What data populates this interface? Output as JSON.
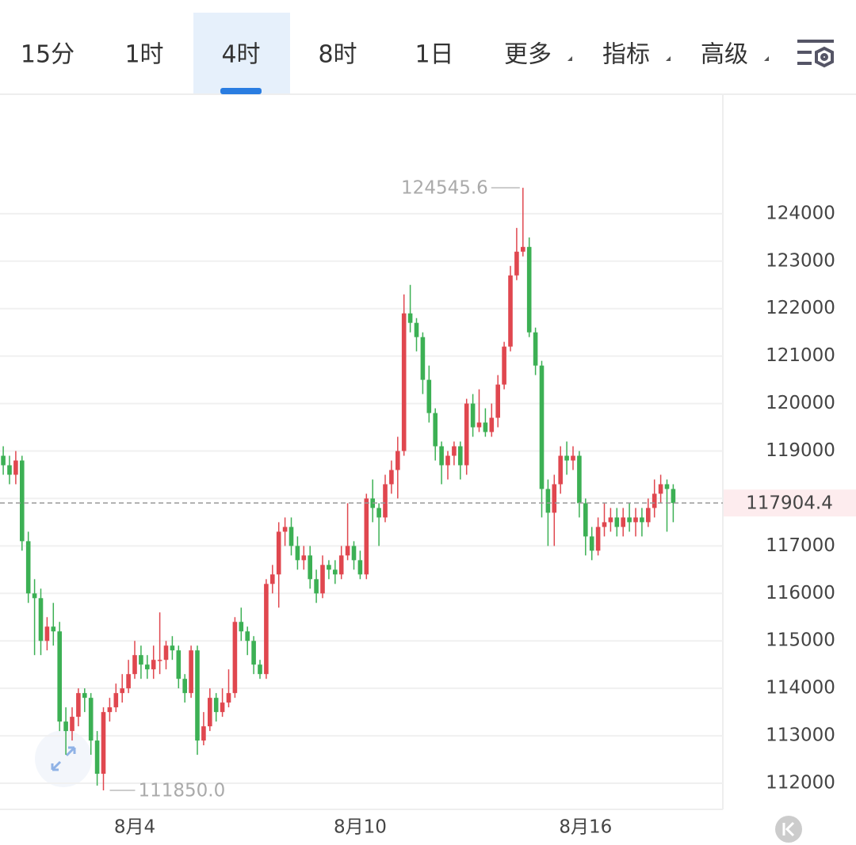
{
  "toolbar": {
    "tabs": [
      {
        "label": "15分",
        "selected": false
      },
      {
        "label": "1时",
        "selected": false
      },
      {
        "label": "4时",
        "selected": true
      },
      {
        "label": "8时",
        "selected": false
      },
      {
        "label": "1日",
        "selected": false
      },
      {
        "label": "更多",
        "selected": false,
        "dropdown": true
      },
      {
        "label": "指标",
        "selected": false,
        "dropdown": true
      },
      {
        "label": "高级",
        "selected": false,
        "dropdown": true
      }
    ]
  },
  "chart_data": {
    "type": "candlestick",
    "up_color": "#e0474f",
    "down_color": "#3cb054",
    "ylim": [
      111450,
      126500
    ],
    "yticks": [
      112000,
      113000,
      114000,
      115000,
      116000,
      117000,
      118000,
      119000,
      120000,
      121000,
      122000,
      123000,
      124000
    ],
    "grid": true,
    "last_price": 117904.4,
    "max_label": 124545.6,
    "min_label": {
      "value": 111850,
      "label": "111850.0"
    },
    "categories": [
      null,
      null,
      null,
      null,
      null,
      null,
      null,
      null,
      null,
      null,
      null,
      null,
      null,
      null,
      null,
      null,
      null,
      null,
      null,
      null,
      null,
      "8月4",
      null,
      null,
      null,
      null,
      null,
      null,
      null,
      null,
      null,
      null,
      null,
      null,
      null,
      null,
      null,
      null,
      null,
      null,
      null,
      null,
      null,
      null,
      null,
      null,
      null,
      null,
      null,
      null,
      null,
      null,
      null,
      null,
      null,
      null,
      null,
      "8月10",
      null,
      null,
      null,
      null,
      null,
      null,
      null,
      null,
      null,
      null,
      null,
      null,
      null,
      null,
      null,
      null,
      null,
      null,
      null,
      null,
      null,
      null,
      null,
      null,
      null,
      null,
      null,
      null,
      null,
      null,
      null,
      null,
      null,
      null,
      null,
      "8月16",
      null,
      null,
      null,
      null,
      null,
      null,
      null,
      null,
      null,
      null,
      null,
      null,
      null,
      null
    ],
    "candles": [
      [
        118900,
        119100,
        118500,
        118700
      ],
      [
        118700,
        118900,
        118300,
        118500
      ],
      [
        118500,
        119000,
        118300,
        118800
      ],
      [
        118800,
        118900,
        116900,
        117100
      ],
      [
        117100,
        117300,
        115800,
        116000
      ],
      [
        116000,
        116300,
        114700,
        115900
      ],
      [
        115900,
        116100,
        114700,
        115000
      ],
      [
        115000,
        115500,
        114800,
        115300
      ],
      [
        115300,
        115800,
        114900,
        115200
      ],
      [
        115200,
        115400,
        113100,
        113300
      ],
      [
        113300,
        113600,
        112600,
        113100
      ],
      [
        113100,
        113600,
        112900,
        113400
      ],
      [
        113400,
        114000,
        113200,
        113900
      ],
      [
        113900,
        114000,
        113500,
        113800
      ],
      [
        113800,
        113900,
        112600,
        112900
      ],
      [
        112900,
        113100,
        111950,
        112200
      ],
      [
        112200,
        113600,
        111850,
        113500
      ],
      [
        113500,
        113800,
        113300,
        113600
      ],
      [
        113600,
        114100,
        113500,
        113900
      ],
      [
        113900,
        114300,
        113700,
        114000
      ],
      [
        114000,
        114600,
        113900,
        114300
      ],
      [
        114300,
        115000,
        114200,
        114700
      ],
      [
        114700,
        114900,
        114200,
        114500
      ],
      [
        114500,
        114700,
        114200,
        114400
      ],
      [
        114400,
        114900,
        114200,
        114600
      ],
      [
        114600,
        115600,
        114300,
        114600
      ],
      [
        114600,
        115000,
        114400,
        114900
      ],
      [
        114900,
        115100,
        114600,
        114800
      ],
      [
        114800,
        114900,
        114000,
        114200
      ],
      [
        114200,
        114300,
        113700,
        113900
      ],
      [
        113900,
        114900,
        113800,
        114800
      ],
      [
        114800,
        114900,
        112600,
        112900
      ],
      [
        112900,
        113500,
        112800,
        113200
      ],
      [
        113200,
        114000,
        113100,
        113800
      ],
      [
        113800,
        113900,
        113300,
        113500
      ],
      [
        113500,
        114000,
        113400,
        113700
      ],
      [
        113700,
        114400,
        113600,
        113900
      ],
      [
        113900,
        115500,
        113800,
        115400
      ],
      [
        115400,
        115700,
        115000,
        115200
      ],
      [
        115200,
        115300,
        114700,
        115000
      ],
      [
        115000,
        115100,
        114300,
        114500
      ],
      [
        114500,
        114600,
        114200,
        114300
      ],
      [
        114300,
        116300,
        114200,
        116200
      ],
      [
        116200,
        116600,
        116000,
        116400
      ],
      [
        116400,
        117500,
        115700,
        117300
      ],
      [
        117300,
        117600,
        117000,
        117400
      ],
      [
        117400,
        117600,
        116800,
        117000
      ],
      [
        117000,
        117200,
        116500,
        116700
      ],
      [
        116700,
        117000,
        116500,
        116800
      ],
      [
        116800,
        117000,
        116100,
        116300
      ],
      [
        116300,
        116500,
        115800,
        116000
      ],
      [
        116000,
        116800,
        115900,
        116600
      ],
      [
        116600,
        116700,
        116300,
        116500
      ],
      [
        116500,
        116700,
        116200,
        116400
      ],
      [
        116400,
        117000,
        116300,
        116800
      ],
      [
        116800,
        117900,
        116700,
        117000
      ],
      [
        117000,
        117100,
        116500,
        116700
      ],
      [
        116700,
        116900,
        116300,
        116400
      ],
      [
        116400,
        118100,
        116300,
        118000
      ],
      [
        118000,
        118400,
        117500,
        117800
      ],
      [
        117800,
        117900,
        117000,
        117600
      ],
      [
        117600,
        118500,
        117500,
        118300
      ],
      [
        118300,
        118800,
        118100,
        118600
      ],
      [
        118600,
        119300,
        118000,
        119000
      ],
      [
        119000,
        122300,
        118900,
        121900
      ],
      [
        121900,
        122500,
        121500,
        121700
      ],
      [
        121700,
        121800,
        121100,
        121400
      ],
      [
        121400,
        121500,
        120200,
        120500
      ],
      [
        120500,
        120800,
        119600,
        119800
      ],
      [
        119800,
        119900,
        118800,
        119100
      ],
      [
        119100,
        119200,
        118300,
        118700
      ],
      [
        118700,
        119000,
        118400,
        118900
      ],
      [
        118900,
        119200,
        118700,
        119100
      ],
      [
        119100,
        119200,
        118400,
        118700
      ],
      [
        118700,
        120100,
        118500,
        120000
      ],
      [
        120000,
        120200,
        119300,
        119500
      ],
      [
        119500,
        120300,
        119400,
        119600
      ],
      [
        119600,
        119900,
        119300,
        119400
      ],
      [
        119400,
        120000,
        119300,
        119700
      ],
      [
        119700,
        120600,
        119500,
        120400
      ],
      [
        120400,
        121300,
        120300,
        121200
      ],
      [
        121200,
        122900,
        121100,
        122700
      ],
      [
        122700,
        123700,
        122600,
        123200
      ],
      [
        123200,
        124545.6,
        123100,
        123300
      ],
      [
        123300,
        123500,
        121400,
        121500
      ],
      [
        121500,
        121600,
        120600,
        120800
      ],
      [
        120800,
        120900,
        117600,
        118200
      ],
      [
        118200,
        118400,
        117000,
        117700
      ],
      [
        117700,
        118500,
        117000,
        118300
      ],
      [
        118300,
        119100,
        118100,
        118900
      ],
      [
        118900,
        119200,
        118500,
        118800
      ],
      [
        118800,
        119100,
        118600,
        118900
      ],
      [
        118900,
        119000,
        117600,
        117900
      ],
      [
        117900,
        118000,
        116800,
        117200
      ],
      [
        117200,
        117400,
        116700,
        116900
      ],
      [
        116900,
        117600,
        116800,
        117400
      ],
      [
        117400,
        117900,
        117200,
        117500
      ],
      [
        117500,
        117800,
        117300,
        117600
      ],
      [
        117600,
        117800,
        117200,
        117400
      ],
      [
        117400,
        117800,
        117200,
        117600
      ],
      [
        117600,
        117900,
        117300,
        117500
      ],
      [
        117500,
        117800,
        117200,
        117600
      ],
      [
        117600,
        117800,
        117200,
        117500
      ],
      [
        117500,
        118000,
        117400,
        117800
      ],
      [
        117800,
        118400,
        117600,
        118100
      ],
      [
        118100,
        118500,
        117900,
        118300
      ],
      [
        118300,
        118400,
        117300,
        118200
      ],
      [
        118200,
        118300,
        117500,
        117904.4
      ]
    ]
  }
}
